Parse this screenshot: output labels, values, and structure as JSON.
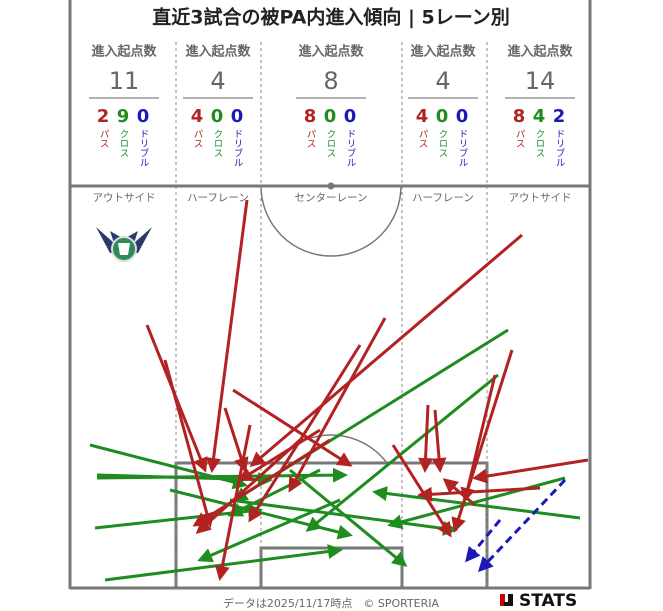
{
  "title": "直近3試合の被PA内進入傾向 | 5レーン別",
  "header_label": "進入起点数",
  "type_labels": {
    "pass": "パス",
    "cross": "クロス",
    "dribble": "ドリブル"
  },
  "lanes": [
    {
      "name": "アウトサイド",
      "total": 11,
      "pass": 2,
      "cross": 9,
      "dribble": 0
    },
    {
      "name": "ハーフレーン",
      "total": 4,
      "pass": 4,
      "cross": 0,
      "dribble": 0
    },
    {
      "name": "センターレーン",
      "total": 8,
      "pass": 8,
      "cross": 0,
      "dribble": 0
    },
    {
      "name": "ハーフレーン",
      "total": 4,
      "pass": 4,
      "cross": 0,
      "dribble": 0
    },
    {
      "name": "アウトサイド",
      "total": 14,
      "pass": 8,
      "cross": 4,
      "dribble": 2
    }
  ],
  "footer": "データは2025/11/17時点　© SPORTERIA",
  "brand": "STATS"
}
